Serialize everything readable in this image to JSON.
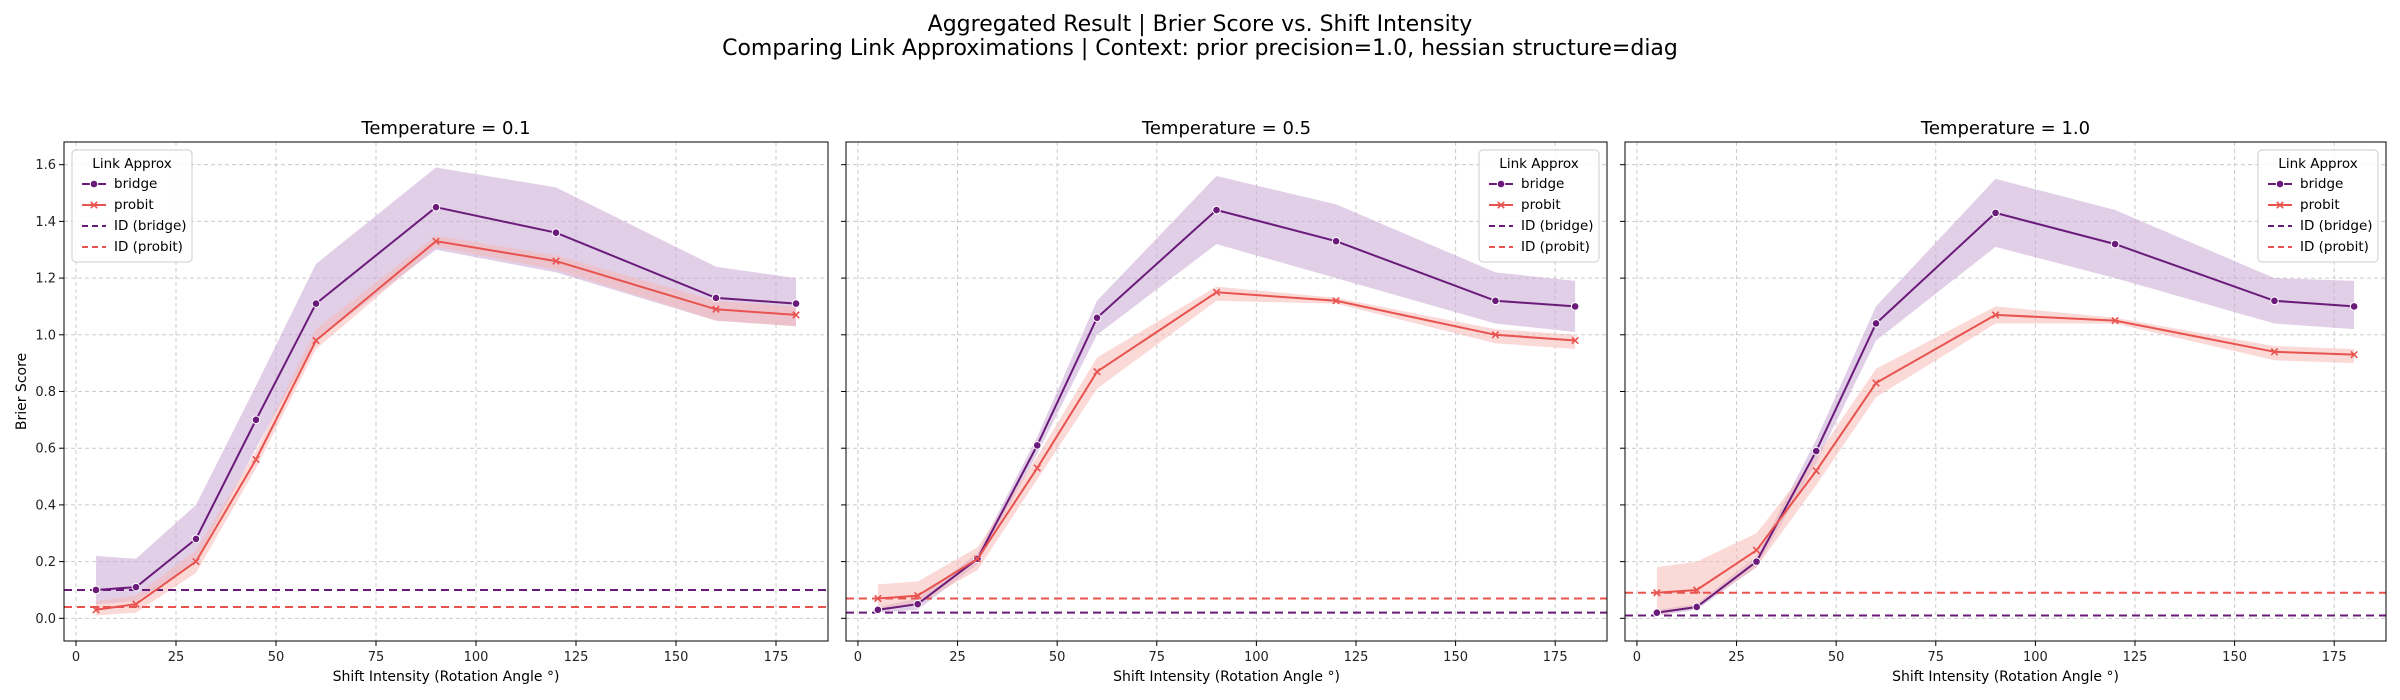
{
  "figure": {
    "title_line1": "Aggregated Result | Brier Score vs. Shift Intensity",
    "title_line2": "Comparing Link Approximations | Context: prior precision=1.0, hessian structure=diag"
  },
  "colors": {
    "bridge": "#6a1b7a",
    "bridge_band": "#c9a6d4",
    "probit": "#e8534f",
    "probit_band": "#f6b9b6",
    "grid": "#cccccc"
  },
  "chart_data": [
    {
      "type": "line",
      "title": "Temperature = 0.1",
      "xlabel": "Shift Intensity (Rotation Angle °)",
      "ylabel": "Brier Score",
      "xlim": [
        -3,
        188
      ],
      "ylim": [
        -0.08,
        1.68
      ],
      "xticks": [
        0,
        25,
        50,
        75,
        100,
        125,
        150,
        175
      ],
      "yticks": [
        0.0,
        0.2,
        0.4,
        0.6,
        0.8,
        1.0,
        1.2,
        1.4,
        1.6
      ],
      "grid": true,
      "legend_position": "upper left",
      "legend_title": "Link Approx",
      "legend_entries": [
        "bridge",
        "probit",
        "ID (bridge)",
        "ID (probit)"
      ],
      "x": [
        5,
        15,
        30,
        45,
        60,
        90,
        120,
        160,
        180
      ],
      "series": [
        {
          "name": "bridge",
          "values": [
            0.1,
            0.11,
            0.28,
            0.7,
            1.11,
            1.45,
            1.36,
            1.13,
            1.11
          ],
          "lower": [
            0.05,
            0.06,
            0.2,
            0.6,
            0.98,
            1.3,
            1.22,
            1.05,
            1.03
          ],
          "upper": [
            0.22,
            0.21,
            0.4,
            0.82,
            1.25,
            1.59,
            1.52,
            1.24,
            1.2
          ]
        },
        {
          "name": "probit",
          "values": [
            0.03,
            0.05,
            0.2,
            0.56,
            0.98,
            1.33,
            1.26,
            1.09,
            1.07
          ],
          "lower": [
            0.01,
            0.02,
            0.16,
            0.53,
            0.95,
            1.31,
            1.23,
            1.05,
            1.03
          ],
          "upper": [
            0.06,
            0.08,
            0.24,
            0.59,
            1.02,
            1.35,
            1.28,
            1.12,
            1.1
          ]
        }
      ],
      "reference_lines": [
        {
          "name": "ID (bridge)",
          "y": 0.1
        },
        {
          "name": "ID (probit)",
          "y": 0.04
        }
      ]
    },
    {
      "type": "line",
      "title": "Temperature = 0.5",
      "xlabel": "Shift Intensity (Rotation Angle °)",
      "ylabel": "",
      "xlim": [
        -3,
        188
      ],
      "ylim": [
        -0.08,
        1.68
      ],
      "xticks": [
        0,
        25,
        50,
        75,
        100,
        125,
        150,
        175
      ],
      "yticks": [
        0.0,
        0.2,
        0.4,
        0.6,
        0.8,
        1.0,
        1.2,
        1.4,
        1.6
      ],
      "grid": true,
      "legend_position": "upper right",
      "legend_title": "Link Approx",
      "legend_entries": [
        "bridge",
        "probit",
        "ID (bridge)",
        "ID (probit)"
      ],
      "x": [
        5,
        15,
        30,
        45,
        60,
        90,
        120,
        160,
        180
      ],
      "series": [
        {
          "name": "bridge",
          "values": [
            0.03,
            0.05,
            0.21,
            0.61,
            1.06,
            1.44,
            1.33,
            1.12,
            1.1
          ],
          "lower": [
            0.02,
            0.03,
            0.19,
            0.58,
            1.0,
            1.32,
            1.2,
            1.04,
            1.01
          ],
          "upper": [
            0.04,
            0.07,
            0.23,
            0.64,
            1.12,
            1.56,
            1.46,
            1.22,
            1.19
          ]
        },
        {
          "name": "probit",
          "values": [
            0.07,
            0.08,
            0.21,
            0.53,
            0.87,
            1.15,
            1.12,
            1.0,
            0.98
          ],
          "lower": [
            0.03,
            0.05,
            0.17,
            0.49,
            0.81,
            1.12,
            1.11,
            0.97,
            0.95
          ],
          "upper": [
            0.12,
            0.13,
            0.25,
            0.57,
            0.92,
            1.17,
            1.13,
            1.02,
            1.0
          ]
        }
      ],
      "reference_lines": [
        {
          "name": "ID (bridge)",
          "y": 0.02
        },
        {
          "name": "ID (probit)",
          "y": 0.07
        }
      ]
    },
    {
      "type": "line",
      "title": "Temperature = 1.0",
      "xlabel": "Shift Intensity (Rotation Angle °)",
      "ylabel": "",
      "xlim": [
        -3,
        188
      ],
      "ylim": [
        -0.08,
        1.68
      ],
      "xticks": [
        0,
        25,
        50,
        75,
        100,
        125,
        150,
        175
      ],
      "yticks": [
        0.0,
        0.2,
        0.4,
        0.6,
        0.8,
        1.0,
        1.2,
        1.4,
        1.6
      ],
      "grid": true,
      "legend_position": "upper right",
      "legend_title": "Link Approx",
      "legend_entries": [
        "bridge",
        "probit",
        "ID (bridge)",
        "ID (probit)"
      ],
      "x": [
        5,
        15,
        30,
        45,
        60,
        90,
        120,
        160,
        180
      ],
      "series": [
        {
          "name": "bridge",
          "values": [
            0.02,
            0.04,
            0.2,
            0.59,
            1.04,
            1.43,
            1.32,
            1.12,
            1.1
          ],
          "lower": [
            0.01,
            0.03,
            0.18,
            0.55,
            0.98,
            1.31,
            1.2,
            1.04,
            1.02
          ],
          "upper": [
            0.03,
            0.05,
            0.22,
            0.63,
            1.1,
            1.55,
            1.44,
            1.2,
            1.19
          ]
        },
        {
          "name": "probit",
          "values": [
            0.09,
            0.1,
            0.24,
            0.52,
            0.83,
            1.07,
            1.05,
            0.94,
            0.93
          ],
          "lower": [
            0.01,
            0.04,
            0.18,
            0.47,
            0.78,
            1.04,
            1.04,
            0.91,
            0.9
          ],
          "upper": [
            0.18,
            0.2,
            0.3,
            0.57,
            0.88,
            1.1,
            1.06,
            0.96,
            0.95
          ]
        }
      ],
      "reference_lines": [
        {
          "name": "ID (bridge)",
          "y": 0.01
        },
        {
          "name": "ID (probit)",
          "y": 0.09
        }
      ]
    }
  ]
}
